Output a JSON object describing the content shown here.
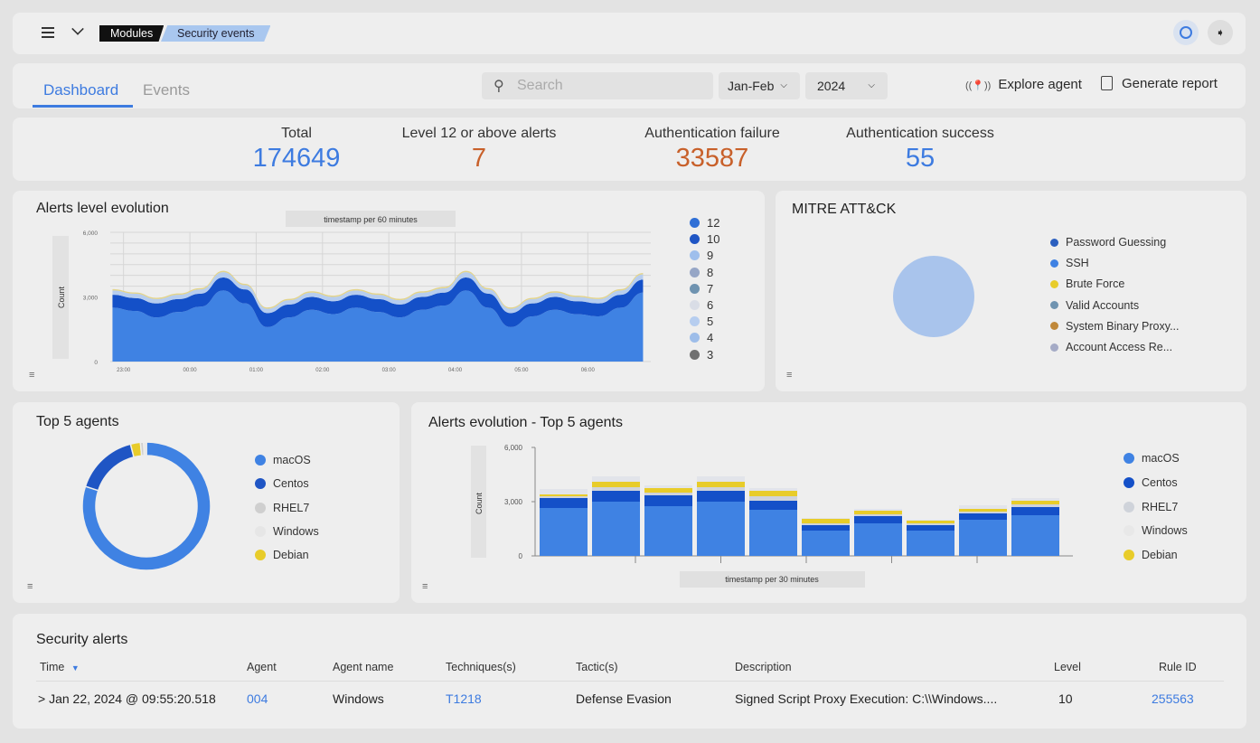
{
  "header": {
    "breadcrumb": [
      "Modules",
      "Security events"
    ],
    "menu_icon": "hamburger-icon",
    "chevron_icon": "chevron-down-icon",
    "status_icon": "circle-icon",
    "logout_icon": "logout-icon"
  },
  "toolbar": {
    "tabs": [
      {
        "label": "Dashboard",
        "active": true
      },
      {
        "label": "Events",
        "active": false
      }
    ],
    "search_placeholder": "Search",
    "period": "Jan-Feb",
    "year": "2024",
    "explore_agent": "Explore agent",
    "generate_report": "Generate report"
  },
  "stats": [
    {
      "label": "Total",
      "value": "174649",
      "color": "#3d7be0"
    },
    {
      "label": "Level 12 or above alerts",
      "value": "7",
      "color": "#c8602a"
    },
    {
      "label": "Authentication failure",
      "value": "33587",
      "color": "#c8602a"
    },
    {
      "label": "Authentication success",
      "value": "55",
      "color": "#3d7be0"
    }
  ],
  "colors": {
    "accent": "#3d7be0",
    "panel": "#eeeeee"
  },
  "chart_data": [
    {
      "type": "area",
      "title": "Alerts level evolution",
      "xlabel": "timestamp per 60 minutes",
      "ylabel": "Count",
      "ylim": [
        0,
        6000
      ],
      "yticks": [
        "6,000",
        "3,000",
        "0"
      ],
      "xticks": [
        "23:00",
        "00:00",
        "01:00",
        "02:00",
        "03:00",
        "04:00",
        "05:00",
        "06:00"
      ],
      "grid": true,
      "legend_position": "right",
      "stacked": true,
      "legend": [
        {
          "name": "12",
          "color": "#2f6fd6"
        },
        {
          "name": "10",
          "color": "#1f55c4"
        },
        {
          "name": "9",
          "color": "#9fbfec"
        },
        {
          "name": "8",
          "color": "#96a6c6"
        },
        {
          "name": "7",
          "color": "#6f93b0"
        },
        {
          "name": "6",
          "color": "#d9dde6"
        },
        {
          "name": "5",
          "color": "#b6cdef"
        },
        {
          "name": "4",
          "color": "#9dbde9"
        },
        {
          "name": "3",
          "color": "#707070"
        }
      ],
      "x": [
        "22:50",
        "23:10",
        "23:30",
        "23:50",
        "00:10",
        "00:30",
        "00:50",
        "01:10",
        "01:30",
        "01:50",
        "02:10",
        "02:30",
        "02:50",
        "03:10",
        "03:30",
        "03:50",
        "04:10",
        "04:30",
        "04:50",
        "05:10",
        "05:30",
        "05:50",
        "06:10",
        "06:30",
        "06:50"
      ],
      "series": [
        {
          "name": "4",
          "color": "#3f82e3",
          "values": [
            2500,
            2350,
            2050,
            2300,
            2550,
            3300,
            2700,
            1600,
            2050,
            2400,
            2200,
            2500,
            2300,
            2050,
            2400,
            2600,
            3300,
            2500,
            1600,
            2100,
            2400,
            2200,
            2100,
            2500,
            3200
          ]
        },
        {
          "name": "10",
          "color": "#1450c8",
          "values": [
            600,
            600,
            650,
            600,
            600,
            600,
            650,
            650,
            600,
            600,
            600,
            600,
            600,
            600,
            600,
            600,
            600,
            650,
            650,
            600,
            600,
            600,
            600,
            600,
            600
          ]
        },
        {
          "name": "5",
          "color": "#b6cdef",
          "values": [
            200,
            200,
            200,
            200,
            200,
            250,
            200,
            200,
            200,
            200,
            200,
            200,
            200,
            200,
            200,
            200,
            250,
            200,
            200,
            200,
            200,
            200,
            200,
            200,
            250
          ]
        },
        {
          "name": "9",
          "color": "#e3d48a",
          "values": [
            60,
            60,
            60,
            60,
            60,
            60,
            60,
            60,
            60,
            60,
            60,
            60,
            60,
            60,
            60,
            60,
            60,
            60,
            60,
            60,
            60,
            60,
            60,
            60,
            60
          ]
        }
      ]
    },
    {
      "type": "pie",
      "title": "MITRE ATT&CK",
      "legend_position": "right",
      "legend": [
        {
          "name": "Password Guessing",
          "color": "#2b5fbf"
        },
        {
          "name": "SSH",
          "color": "#3f82e3"
        },
        {
          "name": "Brute Force",
          "color": "#e8cc2a"
        },
        {
          "name": "Valid Accounts",
          "color": "#6f93b0"
        },
        {
          "name": "System Binary Proxy...",
          "color": "#c0883a"
        },
        {
          "name": "Account Access Re...",
          "color": "#a5abc6"
        }
      ],
      "slices": [
        {
          "name": "shown",
          "value": 100,
          "color": "#a9c4ec"
        }
      ]
    },
    {
      "type": "pie",
      "donut": true,
      "title": "Top 5 agents",
      "legend_position": "right",
      "categories": [
        "macOS",
        "Centos",
        "RHEL7",
        "Windows",
        "Debian"
      ],
      "colors": [
        "#3f82e3",
        "#1f55c4",
        "#cfcfcf",
        "#e6e6e6",
        "#e8cc2a"
      ],
      "values": [
        80,
        16,
        0.8,
        0.7,
        2.5
      ]
    },
    {
      "type": "bar",
      "stacked": true,
      "title": "Alerts evolution - Top 5 agents",
      "xlabel": "timestamp per 30 minutes",
      "ylabel": "Count",
      "ylim": [
        0,
        6000
      ],
      "yticks": [
        "6,000",
        "3,000",
        "0"
      ],
      "legend_position": "right",
      "series": [
        {
          "name": "macOS",
          "color": "#3f82e3",
          "values": [
            2650,
            3000,
            2750,
            3000,
            2550,
            1400,
            1800,
            1400,
            2000,
            2250
          ]
        },
        {
          "name": "Centos",
          "color": "#1450c8",
          "values": [
            550,
            600,
            600,
            600,
            500,
            300,
            400,
            300,
            350,
            450
          ]
        },
        {
          "name": "RHEL7",
          "color": "#cfd3da",
          "values": [
            100,
            200,
            150,
            200,
            250,
            100,
            100,
            100,
            100,
            150
          ]
        },
        {
          "name": "Debian",
          "color": "#e8cc2a",
          "values": [
            100,
            300,
            250,
            300,
            300,
            250,
            200,
            150,
            150,
            200
          ]
        },
        {
          "name": "Windows",
          "color": "#e2e4ea",
          "values": [
            300,
            300,
            150,
            300,
            150,
            50,
            100,
            50,
            200,
            150
          ]
        }
      ]
    }
  ],
  "alerts": {
    "title": "Security alerts",
    "columns": [
      "Time",
      "Agent",
      "Agent name",
      "Techniques(s)",
      "Tactic(s)",
      "Description",
      "Level",
      "Rule ID"
    ],
    "rows": [
      {
        "time": "> Jan 22, 2024 @ 09:55:20.518",
        "agent": "004",
        "agent_name": "Windows",
        "technique": "T1218",
        "tactic": "Defense Evasion",
        "description": "Signed Script Proxy Execution: C:\\\\Windows....",
        "level": "10",
        "rule_id": "255563"
      }
    ]
  }
}
